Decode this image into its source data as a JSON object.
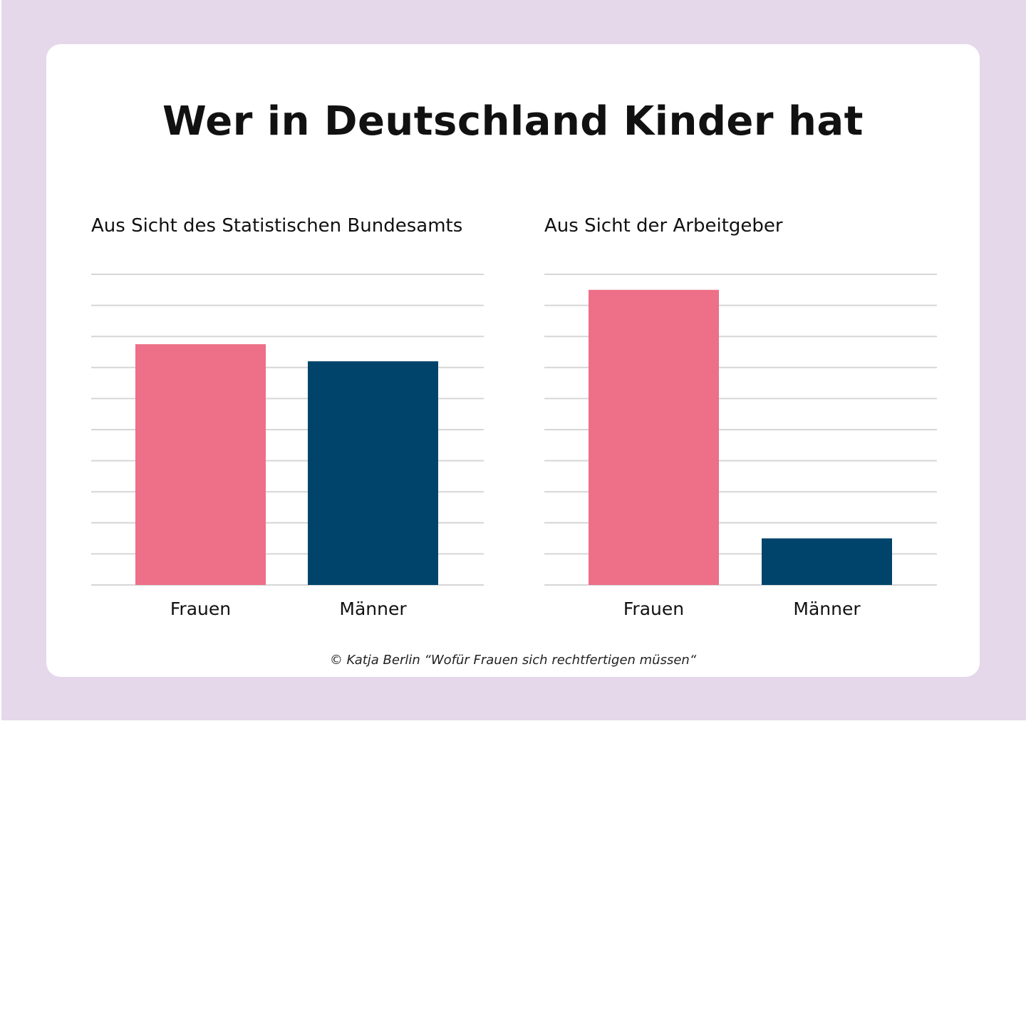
{
  "title": "Wer in Deutschland Kinder hat",
  "source": "© Katja Berlin “Wofür Frauen sich rechtfertigen müssen“",
  "colors": {
    "background": "#e4d8ea",
    "frauen": "#ed6f88",
    "maenner": "#00446b",
    "grid": "#d6d6d6"
  },
  "chart_data": [
    {
      "type": "bar",
      "title": "Aus Sicht des Statistischen Bundesamts",
      "categories": [
        "Frauen",
        "Männer"
      ],
      "values": [
        7.75,
        7.2
      ],
      "ylim": [
        0,
        10
      ],
      "grid": true,
      "colors": [
        "#ed6f88",
        "#00446b"
      ]
    },
    {
      "type": "bar",
      "title": "Aus Sicht der Arbeitgeber",
      "categories": [
        "Frauen",
        "Männer"
      ],
      "values": [
        9.5,
        1.5
      ],
      "ylim": [
        0,
        10
      ],
      "grid": true,
      "colors": [
        "#ed6f88",
        "#00446b"
      ]
    }
  ]
}
